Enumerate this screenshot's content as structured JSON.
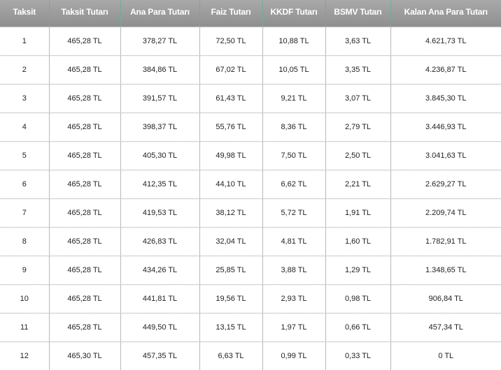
{
  "table": {
    "columns": [
      "Taksit",
      "Taksit Tutarı",
      "Ana Para Tutarı",
      "Faiz Tutarı",
      "KKDF Tutarı",
      "BSMV Tutarı",
      "Kalan Ana Para Tutarı"
    ],
    "rows": [
      [
        "1",
        "465,28 TL",
        "378,27 TL",
        "72,50 TL",
        "10,88 TL",
        "3,63 TL",
        "4.621,73 TL"
      ],
      [
        "2",
        "465,28 TL",
        "384,86 TL",
        "67,02 TL",
        "10,05 TL",
        "3,35 TL",
        "4.236,87 TL"
      ],
      [
        "3",
        "465,28 TL",
        "391,57 TL",
        "61,43 TL",
        "9,21 TL",
        "3,07 TL",
        "3.845,30 TL"
      ],
      [
        "4",
        "465,28 TL",
        "398,37 TL",
        "55,76 TL",
        "8,36 TL",
        "2,79 TL",
        "3.446,93 TL"
      ],
      [
        "5",
        "465,28 TL",
        "405,30 TL",
        "49,98 TL",
        "7,50 TL",
        "2,50 TL",
        "3.041,63 TL"
      ],
      [
        "6",
        "465,28 TL",
        "412,35 TL",
        "44,10 TL",
        "6,62 TL",
        "2,21 TL",
        "2.629,27 TL"
      ],
      [
        "7",
        "465,28 TL",
        "419,53 TL",
        "38,12 TL",
        "5,72 TL",
        "1,91 TL",
        "2.209,74 TL"
      ],
      [
        "8",
        "465,28 TL",
        "426,83 TL",
        "32,04 TL",
        "4,81 TL",
        "1,60 TL",
        "1.782,91 TL"
      ],
      [
        "9",
        "465,28 TL",
        "434,26 TL",
        "25,85 TL",
        "3,88 TL",
        "1,29 TL",
        "1.348,65 TL"
      ],
      [
        "10",
        "465,28 TL",
        "441,81 TL",
        "19,56 TL",
        "2,93 TL",
        "0,98 TL",
        "906,84 TL"
      ],
      [
        "11",
        "465,28 TL",
        "449,50 TL",
        "13,15 TL",
        "1,97 TL",
        "0,66 TL",
        "457,34 TL"
      ],
      [
        "12",
        "465,30 TL",
        "457,35 TL",
        "6,63 TL",
        "0,99 TL",
        "0,33 TL",
        "0 TL"
      ]
    ]
  },
  "colors": {
    "header_bg": "#9b9b9b",
    "header_text": "#ffffff",
    "header_separator": "#6fae92"
  }
}
